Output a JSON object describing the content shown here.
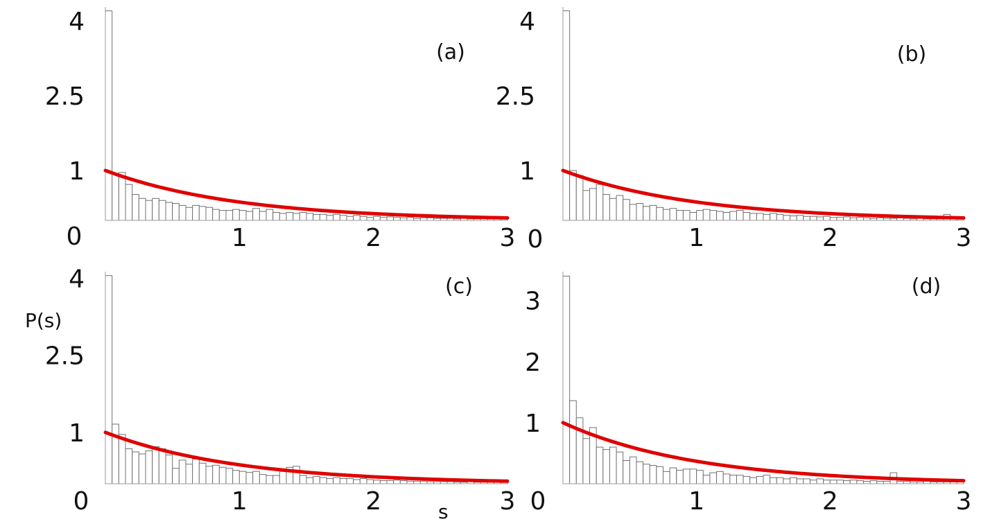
{
  "colors": {
    "curve": "#e00000",
    "bar_edge": "#707070",
    "bar_fill": "#ffffff"
  },
  "labels": {
    "y_title": "P(s)",
    "x_title": "s"
  },
  "chart_data": [
    {
      "type": "bar",
      "panel_label": "(a)",
      "xlim": [
        0,
        3
      ],
      "ylim": [
        0,
        4.25
      ],
      "xticks": [
        "1",
        "2",
        "3"
      ],
      "yticks": [
        {
          "value": 0,
          "label": "0"
        },
        {
          "value": 1,
          "label": "1"
        },
        {
          "value": 2.5,
          "label": "2.5"
        },
        {
          "value": 4,
          "label": "4"
        }
      ],
      "bin_width": 0.05,
      "values": [
        4.2,
        0.94,
        0.96,
        0.72,
        0.52,
        0.44,
        0.4,
        0.44,
        0.4,
        0.36,
        0.34,
        0.3,
        0.26,
        0.3,
        0.28,
        0.26,
        0.22,
        0.2,
        0.2,
        0.22,
        0.2,
        0.18,
        0.24,
        0.18,
        0.22,
        0.16,
        0.14,
        0.16,
        0.14,
        0.16,
        0.14,
        0.12,
        0.12,
        0.1,
        0.12,
        0.1,
        0.08,
        0.1,
        0.08,
        0.06,
        0.08,
        0.06,
        0.07,
        0.06,
        0.05,
        0.06,
        0.04,
        0.05,
        0.05,
        0.04,
        0.04,
        0.04,
        0.03,
        0.04,
        0.03,
        0.03,
        0.04,
        0.03,
        0.03,
        0.03
      ],
      "curve": "exp(-s)"
    },
    {
      "type": "bar",
      "panel_label": "(b)",
      "xlim": [
        0,
        3
      ],
      "ylim": [
        0,
        4.25
      ],
      "xticks": [
        "1",
        "2",
        "3"
      ],
      "yticks": [
        {
          "value": 0,
          "label": "0"
        },
        {
          "value": 1,
          "label": "1"
        },
        {
          "value": 2.5,
          "label": "2.5"
        },
        {
          "value": 4,
          "label": "4"
        }
      ],
      "bin_width": 0.05,
      "values": [
        4.2,
        1.0,
        0.9,
        0.6,
        0.64,
        0.72,
        0.52,
        0.44,
        0.5,
        0.42,
        0.32,
        0.34,
        0.28,
        0.3,
        0.26,
        0.22,
        0.24,
        0.2,
        0.2,
        0.16,
        0.2,
        0.22,
        0.2,
        0.18,
        0.16,
        0.18,
        0.2,
        0.16,
        0.14,
        0.14,
        0.12,
        0.14,
        0.12,
        0.1,
        0.09,
        0.1,
        0.08,
        0.08,
        0.07,
        0.08,
        0.06,
        0.06,
        0.07,
        0.05,
        0.06,
        0.05,
        0.04,
        0.05,
        0.04,
        0.04,
        0.05,
        0.04,
        0.03,
        0.04,
        0.03,
        0.03,
        0.03,
        0.12,
        0.03,
        0.03
      ],
      "curve": "exp(-s)"
    },
    {
      "type": "bar",
      "panel_label": "(c)",
      "xlim": [
        0,
        3
      ],
      "ylim": [
        0,
        4.1
      ],
      "xticks": [
        "1",
        "2",
        "3"
      ],
      "yticks": [
        {
          "value": 0,
          "label": "0"
        },
        {
          "value": 1,
          "label": "1"
        },
        {
          "value": 2.5,
          "label": "2.5"
        },
        {
          "value": 4,
          "label": "4"
        }
      ],
      "bin_width": 0.05,
      "values": [
        4.05,
        1.16,
        0.96,
        0.68,
        0.62,
        0.58,
        0.64,
        0.72,
        0.68,
        0.56,
        0.3,
        0.46,
        0.38,
        0.48,
        0.4,
        0.34,
        0.36,
        0.32,
        0.3,
        0.26,
        0.24,
        0.22,
        0.24,
        0.18,
        0.16,
        0.16,
        0.24,
        0.32,
        0.34,
        0.16,
        0.12,
        0.14,
        0.12,
        0.1,
        0.12,
        0.1,
        0.1,
        0.08,
        0.1,
        0.08,
        0.07,
        0.06,
        0.06,
        0.07,
        0.06,
        0.05,
        0.05,
        0.05,
        0.04,
        0.04,
        0.04,
        0.04,
        0.03,
        0.03,
        0.04,
        0.03,
        0.03,
        0.03,
        0.03,
        0.03
      ],
      "curve": "exp(-s)"
    },
    {
      "type": "bar",
      "panel_label": "(d)",
      "xlim": [
        0,
        3
      ],
      "ylim": [
        0,
        3.45
      ],
      "xticks": [
        "1",
        "2",
        "3"
      ],
      "yticks": [
        {
          "value": 0,
          "label": "0"
        },
        {
          "value": 1,
          "label": "1"
        },
        {
          "value": 2,
          "label": "2"
        },
        {
          "value": 3,
          "label": "3"
        }
      ],
      "bin_width": 0.05,
      "values": [
        3.4,
        1.36,
        1.08,
        0.74,
        0.92,
        0.6,
        0.56,
        0.6,
        0.52,
        0.38,
        0.44,
        0.36,
        0.32,
        0.3,
        0.28,
        0.2,
        0.26,
        0.22,
        0.24,
        0.24,
        0.22,
        0.14,
        0.18,
        0.2,
        0.16,
        0.14,
        0.14,
        0.12,
        0.1,
        0.12,
        0.14,
        0.1,
        0.1,
        0.08,
        0.1,
        0.08,
        0.08,
        0.06,
        0.08,
        0.06,
        0.06,
        0.06,
        0.05,
        0.06,
        0.05,
        0.04,
        0.05,
        0.04,
        0.04,
        0.18,
        0.04,
        0.04,
        0.03,
        0.03,
        0.04,
        0.03,
        0.03,
        0.03,
        0.03,
        0.03
      ],
      "curve": "exp(-s)"
    }
  ]
}
